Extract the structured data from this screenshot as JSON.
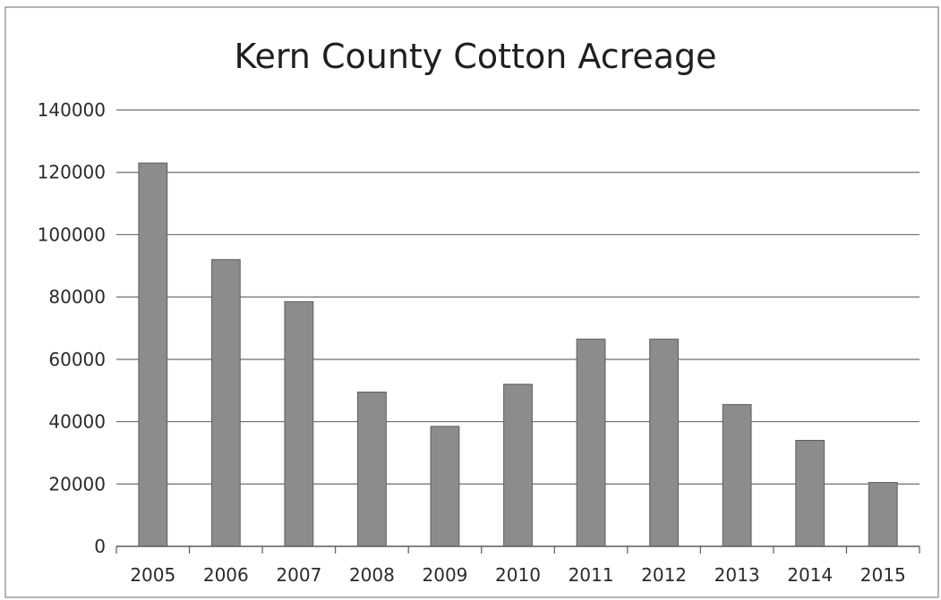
{
  "chart_data": {
    "type": "bar",
    "title": "Kern County Cotton Acreage",
    "xlabel": "",
    "ylabel": "",
    "categories": [
      "2005",
      "2006",
      "2007",
      "2008",
      "2009",
      "2010",
      "2011",
      "2012",
      "2013",
      "2014",
      "2015"
    ],
    "values": [
      123000,
      92000,
      78500,
      49500,
      38500,
      52000,
      66500,
      66500,
      45500,
      34000,
      20500
    ],
    "ylim": [
      0,
      140000
    ],
    "yticks": [
      "0",
      "20000",
      "40000",
      "60000",
      "80000",
      "100000",
      "120000",
      "140000"
    ],
    "grid": true,
    "legend": "none",
    "bar_color": "#8c8c8c",
    "bar_edge_color": "#5e5e5e",
    "grid_color": "#6e6e6e",
    "axis_color": "#5a5a5a",
    "frame_color": "#9a9a9a"
  }
}
